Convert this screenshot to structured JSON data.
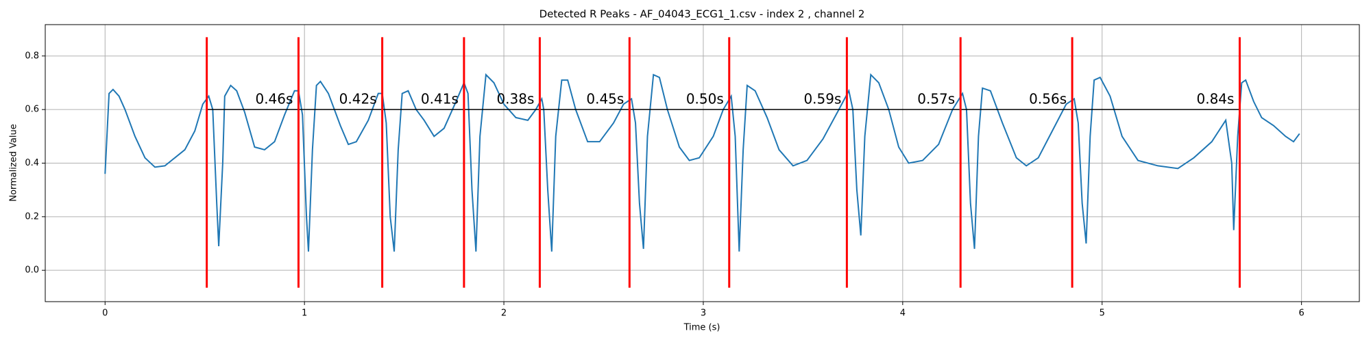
{
  "chart_data": {
    "type": "line",
    "title": "Detected R Peaks - AF_04043_ECG1_1.csv - index 2 , channel 2",
    "xlabel": "Time (s)",
    "ylabel": "Normalized Value",
    "color": "#1f77b4",
    "x": [
      0,
      0.02,
      0.04,
      0.07,
      0.1,
      0.15,
      0.2,
      0.25,
      0.3,
      0.35,
      0.4,
      0.45,
      0.49,
      0.52,
      0.54,
      0.56,
      0.57,
      0.59,
      0.6,
      0.63,
      0.66,
      0.7,
      0.75,
      0.8,
      0.85,
      0.9,
      0.95,
      0.97,
      0.99,
      1.01,
      1.02,
      1.04,
      1.06,
      1.08,
      1.12,
      1.18,
      1.22,
      1.26,
      1.32,
      1.37,
      1.39,
      1.41,
      1.43,
      1.45,
      1.47,
      1.49,
      1.52,
      1.56,
      1.6,
      1.65,
      1.7,
      1.76,
      1.8,
      1.82,
      1.84,
      1.86,
      1.88,
      1.91,
      1.95,
      2.0,
      2.06,
      2.12,
      2.16,
      2.19,
      2.2,
      2.22,
      2.24,
      2.26,
      2.29,
      2.32,
      2.36,
      2.42,
      2.48,
      2.55,
      2.6,
      2.64,
      2.66,
      2.68,
      2.7,
      2.72,
      2.75,
      2.78,
      2.82,
      2.88,
      2.93,
      2.98,
      3.05,
      3.1,
      3.14,
      3.16,
      3.18,
      3.2,
      3.22,
      3.26,
      3.32,
      3.38,
      3.45,
      3.52,
      3.6,
      3.68,
      3.73,
      3.75,
      3.77,
      3.79,
      3.81,
      3.84,
      3.88,
      3.93,
      3.98,
      4.03,
      4.1,
      4.18,
      4.25,
      4.3,
      4.32,
      4.34,
      4.36,
      4.38,
      4.4,
      4.44,
      4.5,
      4.57,
      4.62,
      4.68,
      4.75,
      4.82,
      4.86,
      4.88,
      4.9,
      4.92,
      4.94,
      4.96,
      4.99,
      5.04,
      5.1,
      5.18,
      5.28,
      5.38,
      5.46,
      5.55,
      5.62,
      5.65,
      5.66,
      5.68,
      5.7,
      5.72,
      5.76,
      5.8,
      5.86,
      5.92,
      5.96,
      5.98,
      5.99
    ],
    "values": [
      0.36,
      0.66,
      0.675,
      0.65,
      0.6,
      0.5,
      0.42,
      0.385,
      0.39,
      0.42,
      0.45,
      0.52,
      0.62,
      0.65,
      0.6,
      0.25,
      0.09,
      0.4,
      0.65,
      0.69,
      0.67,
      0.59,
      0.46,
      0.45,
      0.48,
      0.58,
      0.67,
      0.67,
      0.58,
      0.2,
      0.07,
      0.45,
      0.69,
      0.705,
      0.66,
      0.54,
      0.47,
      0.48,
      0.56,
      0.66,
      0.66,
      0.55,
      0.2,
      0.07,
      0.45,
      0.66,
      0.67,
      0.6,
      0.56,
      0.5,
      0.53,
      0.63,
      0.7,
      0.66,
      0.3,
      0.07,
      0.5,
      0.73,
      0.7,
      0.62,
      0.57,
      0.56,
      0.6,
      0.64,
      0.6,
      0.3,
      0.07,
      0.5,
      0.71,
      0.71,
      0.6,
      0.48,
      0.48,
      0.55,
      0.62,
      0.64,
      0.55,
      0.25,
      0.08,
      0.5,
      0.73,
      0.72,
      0.6,
      0.46,
      0.41,
      0.42,
      0.5,
      0.6,
      0.65,
      0.5,
      0.07,
      0.45,
      0.69,
      0.67,
      0.57,
      0.45,
      0.39,
      0.41,
      0.49,
      0.6,
      0.67,
      0.6,
      0.3,
      0.13,
      0.5,
      0.73,
      0.7,
      0.6,
      0.46,
      0.4,
      0.41,
      0.47,
      0.6,
      0.66,
      0.6,
      0.25,
      0.08,
      0.5,
      0.68,
      0.67,
      0.55,
      0.42,
      0.39,
      0.42,
      0.52,
      0.62,
      0.64,
      0.55,
      0.25,
      0.1,
      0.5,
      0.71,
      0.72,
      0.65,
      0.5,
      0.41,
      0.39,
      0.38,
      0.42,
      0.48,
      0.56,
      0.4,
      0.15,
      0.5,
      0.7,
      0.71,
      0.63,
      0.57,
      0.54,
      0.5,
      0.48,
      0.5,
      0.51
    ],
    "peaks": [
      0.51,
      0.97,
      1.39,
      1.8,
      2.18,
      2.63,
      3.13,
      3.72,
      4.29,
      4.85,
      5.69
    ],
    "peak_color": "red",
    "peak_line_range": [
      -0.065,
      0.87
    ],
    "interval_line_y": 0.6,
    "intervals": [
      0.46,
      0.42,
      0.41,
      0.38,
      0.45,
      0.5,
      0.59,
      0.57,
      0.56,
      0.84
    ],
    "interval_labels": [
      "0.46s",
      "0.42s",
      "0.41s",
      "0.38s",
      "0.45s",
      "0.50s",
      "0.59s",
      "0.57s",
      "0.56s",
      "0.84s"
    ],
    "xlim": [
      -0.3,
      6.29
    ],
    "ylim": [
      -0.117,
      0.917
    ],
    "xticks": [
      0,
      1,
      2,
      3,
      4,
      5,
      6
    ],
    "yticks": [
      {
        "value": 0,
        "label": "0.0"
      },
      0.2,
      0.4,
      0.6,
      0.8
    ],
    "grid": true
  }
}
